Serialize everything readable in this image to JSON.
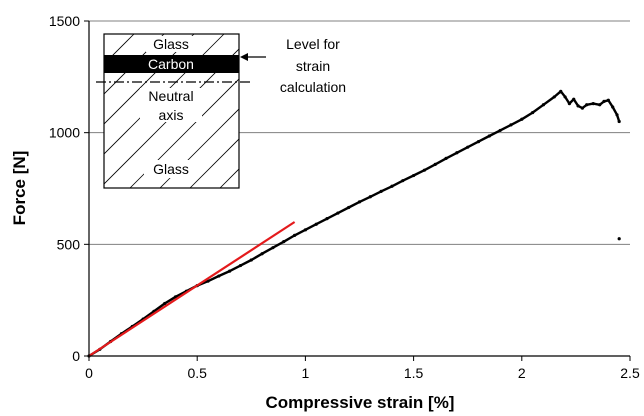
{
  "chart_data": {
    "type": "scatter",
    "xlabel": "Compressive strain [%]",
    "ylabel": "Force [N]",
    "xlim": [
      0,
      2.5
    ],
    "ylim": [
      0,
      1500
    ],
    "x_ticks": [
      0,
      0.5,
      1,
      1.5,
      2,
      2.5
    ],
    "y_ticks": [
      0,
      500,
      1000,
      1500
    ],
    "x_tick_labels": [
      "0",
      "0.5",
      "1",
      "1.5",
      "2",
      "2.5"
    ],
    "y_tick_labels": [
      "0",
      "500",
      "1000",
      "1500"
    ],
    "grid": "horizontal",
    "series": [
      {
        "color": "#000000",
        "style": "dots",
        "points": [
          [
            0,
            0
          ],
          [
            0.05,
            30
          ],
          [
            0.1,
            65
          ],
          [
            0.15,
            100
          ],
          [
            0.2,
            132
          ],
          [
            0.25,
            165
          ],
          [
            0.3,
            200
          ],
          [
            0.35,
            235
          ],
          [
            0.4,
            265
          ],
          [
            0.45,
            290
          ],
          [
            0.5,
            315
          ],
          [
            0.55,
            335
          ],
          [
            0.6,
            358
          ],
          [
            0.65,
            380
          ],
          [
            0.7,
            405
          ],
          [
            0.75,
            430
          ],
          [
            0.8,
            458
          ],
          [
            0.85,
            485
          ],
          [
            0.9,
            512
          ],
          [
            0.95,
            540
          ],
          [
            1.0,
            565
          ],
          [
            1.05,
            590
          ],
          [
            1.1,
            615
          ],
          [
            1.15,
            640
          ],
          [
            1.2,
            665
          ],
          [
            1.25,
            690
          ],
          [
            1.3,
            713
          ],
          [
            1.35,
            737
          ],
          [
            1.4,
            760
          ],
          [
            1.45,
            785
          ],
          [
            1.5,
            808
          ],
          [
            1.55,
            832
          ],
          [
            1.6,
            858
          ],
          [
            1.65,
            885
          ],
          [
            1.7,
            910
          ],
          [
            1.75,
            935
          ],
          [
            1.8,
            960
          ],
          [
            1.85,
            985
          ],
          [
            1.9,
            1010
          ],
          [
            1.95,
            1035
          ],
          [
            2.0,
            1060
          ],
          [
            2.05,
            1090
          ],
          [
            2.1,
            1125
          ],
          [
            2.15,
            1160
          ],
          [
            2.18,
            1185
          ],
          [
            2.2,
            1160
          ],
          [
            2.22,
            1130
          ],
          [
            2.24,
            1150
          ],
          [
            2.26,
            1120
          ],
          [
            2.28,
            1110
          ],
          [
            2.3,
            1125
          ],
          [
            2.33,
            1130
          ],
          [
            2.36,
            1125
          ],
          [
            2.38,
            1140
          ],
          [
            2.4,
            1145
          ],
          [
            2.42,
            1115
          ],
          [
            2.44,
            1080
          ],
          [
            2.45,
            1050
          ],
          [
            2.45,
            525
          ]
        ]
      },
      {
        "color": "#e41a1c",
        "style": "line",
        "points": [
          [
            0,
            0
          ],
          [
            0.95,
            600
          ]
        ]
      }
    ],
    "inset": {
      "layers": [
        "Glass",
        "Carbon",
        "Neutral",
        "axis",
        "Glass"
      ],
      "annotation": [
        "Level for",
        "strain",
        "calculation"
      ]
    }
  },
  "colors": {
    "grid": "#808080",
    "axis": "#000000",
    "carbon_layer": "#000000",
    "fit_line": "#e41a1c"
  }
}
